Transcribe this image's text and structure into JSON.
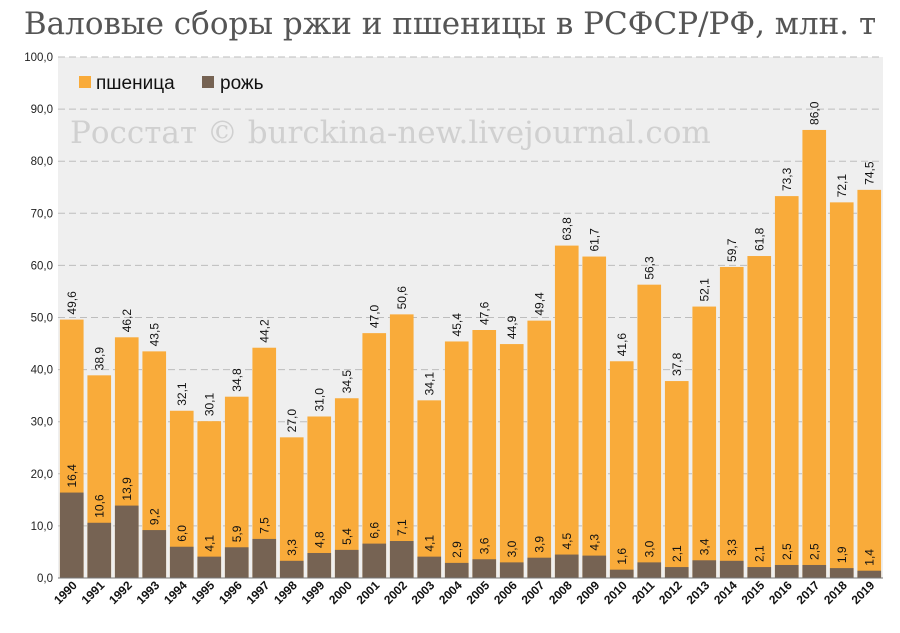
{
  "title": "Валовые сборы ржи и пшеницы  в РСФСР/РФ, млн. т",
  "watermark": "Росстат © burckina-new.livejournal.com",
  "chart_data": {
    "type": "bar",
    "stacked": false,
    "overlapped": true,
    "categories": [
      "1990",
      "1991",
      "1992",
      "1993",
      "1994",
      "1995",
      "1996",
      "1997",
      "1998",
      "1999",
      "2000",
      "2001",
      "2002",
      "2003",
      "2004",
      "2005",
      "2006",
      "2007",
      "2008",
      "2009",
      "2010",
      "2011",
      "2012",
      "2013",
      "2014",
      "2015",
      "2016",
      "2017",
      "2018",
      "2019"
    ],
    "series": [
      {
        "name": "пшеница",
        "color": "#f9ab3a",
        "values": [
          49.6,
          38.9,
          46.2,
          43.5,
          32.1,
          30.1,
          34.8,
          44.2,
          27.0,
          31.0,
          34.5,
          47.0,
          50.6,
          34.1,
          45.4,
          47.6,
          44.9,
          49.4,
          63.8,
          61.7,
          41.6,
          56.3,
          37.8,
          52.1,
          59.7,
          61.8,
          73.3,
          86.0,
          72.1,
          74.5
        ]
      },
      {
        "name": "рожь",
        "color": "#766353",
        "values": [
          16.4,
          10.6,
          13.9,
          9.2,
          6.0,
          4.1,
          5.9,
          7.5,
          3.3,
          4.8,
          5.4,
          6.6,
          7.1,
          4.1,
          2.9,
          3.6,
          3.0,
          3.9,
          4.5,
          4.3,
          1.6,
          3.0,
          2.1,
          3.4,
          3.3,
          2.1,
          2.5,
          2.5,
          1.9,
          1.4
        ]
      }
    ],
    "ylim": [
      0,
      100
    ],
    "yticks": [
      "0,0",
      "10,0",
      "20,0",
      "30,0",
      "40,0",
      "50,0",
      "60,0",
      "70,0",
      "80,0",
      "90,0",
      "100,0"
    ],
    "xlabel": "",
    "ylabel": "",
    "grid": true,
    "legend": "top-left",
    "background": "#efefef",
    "gridColor": "#bdbdbd"
  }
}
